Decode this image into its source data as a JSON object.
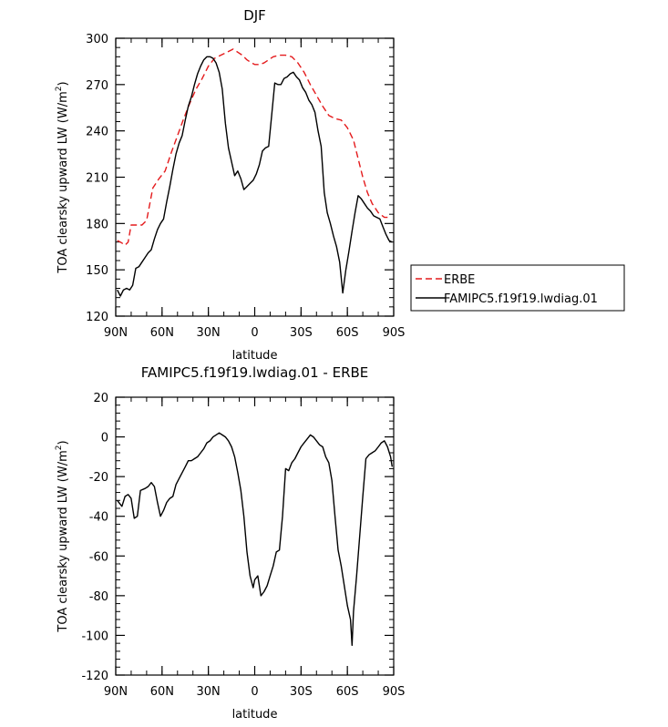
{
  "chart_data": [
    {
      "type": "line",
      "title": "DJF",
      "xlabel": "latitude",
      "ylabel": "TOA clearsky upward LW (W/m",
      "ylabel_sup": "2",
      "ylabel_end": ")",
      "xlim": [
        90,
        -90
      ],
      "ylim": [
        120,
        300
      ],
      "x_ticks": [
        {
          "value": 90,
          "label": "90N"
        },
        {
          "value": 60,
          "label": "60N"
        },
        {
          "value": 30,
          "label": "30N"
        },
        {
          "value": 0,
          "label": "0"
        },
        {
          "value": -30,
          "label": "30S"
        },
        {
          "value": -60,
          "label": "60S"
        },
        {
          "value": -90,
          "label": "90S"
        }
      ],
      "y_ticks": [
        {
          "value": 120,
          "label": "120"
        },
        {
          "value": 150,
          "label": "150"
        },
        {
          "value": 180,
          "label": "180"
        },
        {
          "value": 210,
          "label": "210"
        },
        {
          "value": 240,
          "label": "240"
        },
        {
          "value": 270,
          "label": "270"
        },
        {
          "value": 300,
          "label": "300"
        }
      ],
      "legend": "right",
      "series": [
        {
          "name": "ERBE",
          "color": "#e41a1c",
          "dash": true,
          "x": [
            89,
            87,
            84,
            82,
            80,
            77,
            73,
            70,
            66,
            62,
            58,
            54,
            50,
            46,
            42,
            38,
            34,
            30,
            26,
            22,
            18,
            14,
            11,
            8,
            5,
            2,
            0,
            -3,
            -6,
            -9,
            -12,
            -16,
            -20,
            -24,
            -28,
            -32,
            -36,
            -40,
            -44,
            -48,
            -52,
            -56,
            -60,
            -64,
            -67,
            -70,
            -73,
            -76,
            -80,
            -84,
            -88
          ],
          "y": [
            169,
            168,
            166,
            168,
            179,
            179,
            179,
            182,
            203,
            209,
            214,
            226,
            237,
            248,
            258,
            267,
            274,
            282,
            287,
            289,
            291,
            293,
            291,
            289,
            286,
            284,
            283,
            283,
            284,
            286,
            288,
            289,
            289,
            288,
            284,
            278,
            270,
            263,
            256,
            250,
            248,
            247,
            242,
            234,
            222,
            210,
            200,
            193,
            187,
            184,
            184
          ]
        },
        {
          "name": "FAMIPC5.f19f19.lwdiag.01",
          "color": "#000000",
          "dash": false,
          "x": [
            89,
            87,
            85,
            83,
            81,
            79,
            77,
            75,
            73,
            71,
            69,
            67,
            65,
            63,
            61,
            59,
            57,
            55,
            53,
            51,
            49,
            47,
            45,
            43,
            41,
            39,
            37,
            35,
            33,
            31,
            29,
            27,
            25,
            23,
            21,
            19,
            17,
            15,
            13,
            11,
            9,
            7,
            5,
            3,
            1,
            -1,
            -3,
            -5,
            -7,
            -9,
            -11,
            -13,
            -15,
            -17,
            -19,
            -21,
            -23,
            -25,
            -27,
            -29,
            -31,
            -33,
            -35,
            -37,
            -39,
            -41,
            -43,
            -45,
            -47,
            -49,
            -51,
            -53,
            -55,
            -57,
            -59,
            -61,
            -63,
            -65,
            -67,
            -69,
            -71,
            -73,
            -75,
            -77,
            -79,
            -81,
            -83,
            -85,
            -87,
            -89
          ],
          "y": [
            137,
            133,
            137,
            138,
            137,
            140,
            151,
            152,
            155,
            158,
            161,
            163,
            170,
            176,
            180,
            183,
            194,
            204,
            215,
            225,
            232,
            237,
            247,
            256,
            262,
            270,
            277,
            282,
            286,
            288,
            288,
            287,
            284,
            278,
            267,
            245,
            229,
            220,
            211,
            214,
            209,
            202,
            204,
            206,
            208,
            212,
            218,
            227,
            229,
            230,
            250,
            271,
            270,
            270,
            274,
            275,
            277,
            278,
            275,
            273,
            268,
            265,
            260,
            257,
            252,
            240,
            230,
            200,
            187,
            180,
            172,
            165,
            155,
            135,
            150,
            162,
            175,
            187,
            198,
            196,
            193,
            190,
            188,
            185,
            184,
            183,
            178,
            173,
            169,
            168
          ]
        }
      ]
    },
    {
      "type": "line",
      "title": "FAMIPC5.f19f19.lwdiag.01 - ERBE",
      "xlabel": "latitude",
      "ylabel": "TOA clearsky upward LW (W/m",
      "ylabel_sup": "2",
      "ylabel_end": ")",
      "xlim": [
        90,
        -90
      ],
      "ylim": [
        -120,
        20
      ],
      "x_ticks": [
        {
          "value": 90,
          "label": "90N"
        },
        {
          "value": 60,
          "label": "60N"
        },
        {
          "value": 30,
          "label": "30N"
        },
        {
          "value": 0,
          "label": "0"
        },
        {
          "value": -30,
          "label": "30S"
        },
        {
          "value": -60,
          "label": "60S"
        },
        {
          "value": -90,
          "label": "90S"
        }
      ],
      "y_ticks": [
        {
          "value": -120,
          "label": "-120"
        },
        {
          "value": -100,
          "label": "-100"
        },
        {
          "value": -80,
          "label": "-80"
        },
        {
          "value": -60,
          "label": "-60"
        },
        {
          "value": -40,
          "label": "-40"
        },
        {
          "value": -20,
          "label": "-20"
        },
        {
          "value": 0,
          "label": "0"
        },
        {
          "value": 20,
          "label": "20"
        }
      ],
      "series": [
        {
          "name": "",
          "color": "#000000",
          "dash": false,
          "x": [
            89,
            86,
            84,
            82,
            80,
            78,
            76,
            74,
            71,
            69,
            67,
            65,
            63,
            61,
            59,
            57,
            55,
            53,
            51,
            49,
            47,
            45,
            43,
            41,
            39,
            37,
            35,
            33,
            31,
            29,
            27,
            25,
            23,
            21,
            19,
            17,
            15,
            13,
            11,
            9,
            7,
            5,
            3,
            1,
            0,
            -2,
            -4,
            -6,
            -8,
            -10,
            -12,
            -14,
            -16,
            -18,
            -20,
            -22,
            -24,
            -26,
            -28,
            -30,
            -32,
            -34,
            -36,
            -38,
            -40,
            -42,
            -44,
            -46,
            -48,
            -50,
            -52,
            -54,
            -56,
            -58,
            -60,
            -62,
            -63,
            -64,
            -66,
            -68,
            -70,
            -72,
            -74,
            -76,
            -78,
            -80,
            -82,
            -84,
            -86,
            -88,
            -89
          ],
          "y": [
            -32,
            -35,
            -30,
            -29,
            -31,
            -41,
            -40,
            -27,
            -26,
            -25,
            -23,
            -25,
            -33,
            -40,
            -37,
            -33,
            -31,
            -30,
            -24,
            -21,
            -18,
            -15,
            -12,
            -12,
            -11,
            -10,
            -8,
            -6,
            -3,
            -2,
            0,
            1,
            2,
            1,
            0,
            -2,
            -5,
            -10,
            -18,
            -27,
            -40,
            -58,
            -70,
            -76,
            -72,
            -70,
            -80,
            -78,
            -75,
            -70,
            -65,
            -58,
            -57,
            -40,
            -16,
            -17,
            -13,
            -11,
            -8,
            -5,
            -3,
            -1,
            1,
            0,
            -2,
            -4,
            -5,
            -10,
            -13,
            -22,
            -40,
            -57,
            -65,
            -75,
            -85,
            -92,
            -105,
            -88,
            -70,
            -50,
            -30,
            -11,
            -9,
            -8,
            -7,
            -5,
            -3,
            -2,
            -5,
            -10,
            -15
          ]
        }
      ]
    }
  ]
}
